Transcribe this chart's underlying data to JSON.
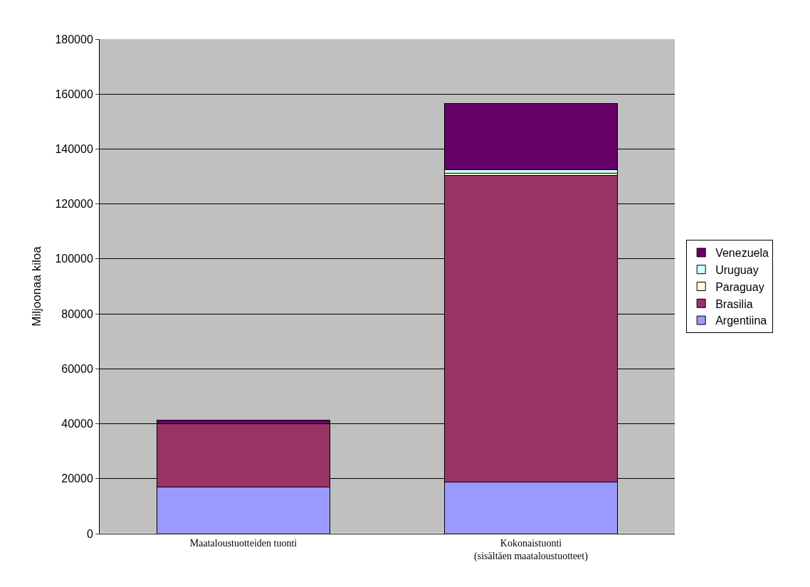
{
  "chart_data": {
    "type": "bar",
    "stacked": true,
    "ylabel": "Miljoonaa kiloa",
    "categories": [
      "Maataloustuotteiden tuonti",
      "Kokonaistuonti\n(sisältäen maataloustuotteet)"
    ],
    "series": [
      {
        "name": "Argentiina",
        "color": "#9999ff",
        "values": [
          17000,
          18800
        ]
      },
      {
        "name": "Brasilia",
        "color": "#993366",
        "values": [
          22900,
          111500
        ]
      },
      {
        "name": "Paraguay",
        "color": "#ffffcc",
        "values": [
          0,
          1000
        ]
      },
      {
        "name": "Uruguay",
        "color": "#ccffff",
        "values": [
          0,
          1300
        ]
      },
      {
        "name": "Venezuela",
        "color": "#660066",
        "values": [
          1300,
          24000
        ]
      }
    ],
    "ylim": [
      0,
      180000
    ],
    "yticks": [
      0,
      20000,
      40000,
      60000,
      80000,
      100000,
      120000,
      140000,
      160000,
      180000
    ],
    "grid": "y",
    "legend": "right"
  }
}
